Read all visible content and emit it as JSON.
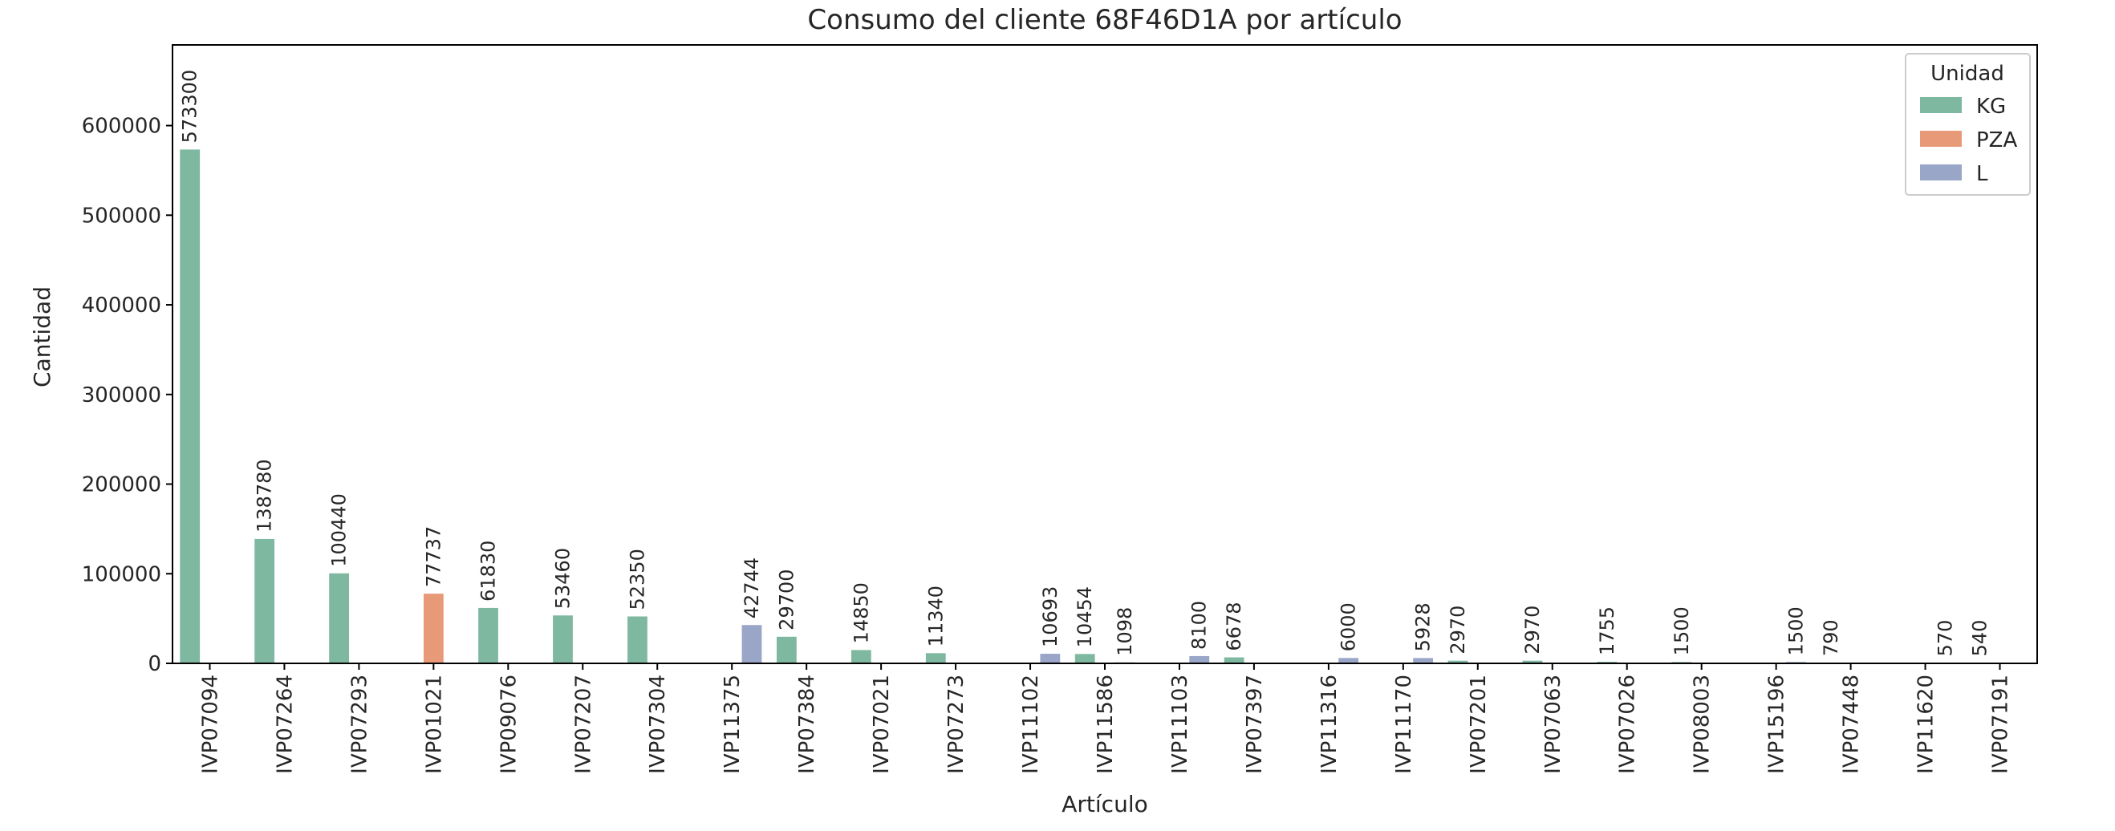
{
  "chart_data": {
    "type": "bar",
    "title": "Consumo del cliente 68F46D1A por artículo",
    "xlabel": "Artículo",
    "ylabel": "Cantidad",
    "ylim": [
      0,
      690000
    ],
    "y_ticks": [
      0,
      100000,
      200000,
      300000,
      400000,
      500000,
      600000
    ],
    "grid": false,
    "legend": {
      "title": "Unidad",
      "position": "top-right"
    },
    "categories": [
      "IVP07094",
      "IVP07264",
      "IVP07293",
      "IVP01021",
      "IVP09076",
      "IVP07207",
      "IVP07304",
      "IVP11375",
      "IVP07384",
      "IVP07021",
      "IVP07273",
      "IVP11102",
      "IVP11586",
      "IVP11103",
      "IVP07397",
      "IVP11316",
      "IVP11170",
      "IVP07201",
      "IVP07063",
      "IVP07026",
      "IVP08003",
      "IVP15196",
      "IVP07448",
      "IVP11620",
      "IVP07191"
    ],
    "series": [
      {
        "name": "KG",
        "color": "#7fb8a0",
        "values": [
          573300,
          138780,
          100440,
          null,
          61830,
          53460,
          52350,
          null,
          29700,
          14850,
          11340,
          null,
          10454,
          null,
          6678,
          null,
          null,
          2970,
          2970,
          1755,
          1500,
          null,
          790,
          null,
          540
        ]
      },
      {
        "name": "PZA",
        "color": "#e89a78",
        "values": [
          null,
          null,
          null,
          77737,
          null,
          null,
          null,
          null,
          null,
          null,
          null,
          null,
          null,
          null,
          null,
          null,
          null,
          null,
          null,
          null,
          null,
          null,
          null,
          null,
          null
        ]
      },
      {
        "name": "L",
        "color": "#9aa6c8",
        "values": [
          null,
          null,
          null,
          null,
          null,
          null,
          null,
          42744,
          null,
          null,
          null,
          10693,
          1098,
          8100,
          null,
          6000,
          5928,
          null,
          null,
          null,
          null,
          1500,
          null,
          570,
          null
        ]
      }
    ]
  }
}
